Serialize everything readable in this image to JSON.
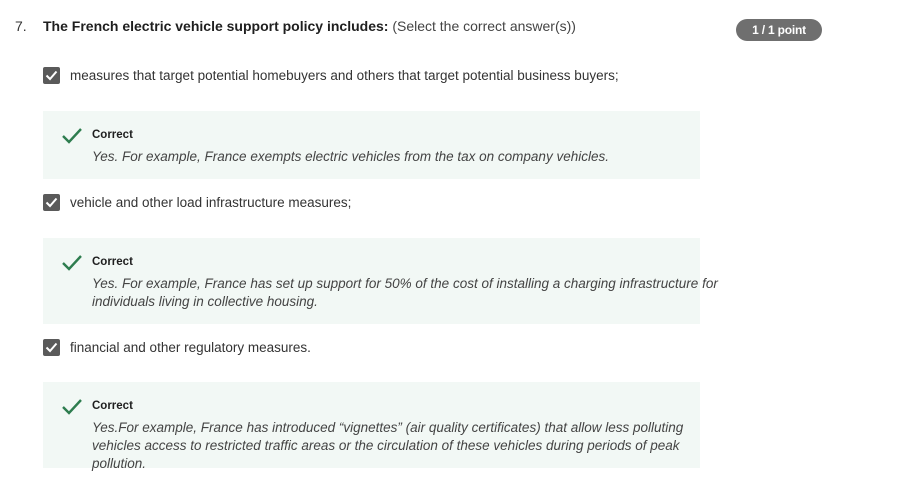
{
  "question": {
    "number": "7.",
    "stem": "The French electric vehicle support policy includes:",
    "instruction": " (Select the correct answer(s))",
    "points_badge": "1 / 1 point"
  },
  "options": [
    {
      "label": "measures that target potential homebuyers and others that target potential business buyers;",
      "checked": true,
      "feedback": {
        "verdict": "Correct",
        "explanation": "Yes. For example, France exempts electric vehicles from the tax on company vehicles."
      }
    },
    {
      "label": "vehicle and other load infrastructure measures;",
      "checked": true,
      "feedback": {
        "verdict": "Correct",
        "explanation": "Yes. For example, France has set up support for 50% of the cost of installing a charging infrastructure for individuals living in collective housing."
      }
    },
    {
      "label": "financial and other regulatory measures.",
      "checked": true,
      "feedback": {
        "verdict": "Correct",
        "explanation": "Yes.For example, France has introduced “vignettes” (air quality certificates) that allow less polluting vehicles access to restricted traffic areas or the circulation of these vehicles during periods of peak pollution."
      }
    }
  ],
  "icons": {
    "checkbox": "checkbox-checked-icon",
    "feedback": "checkmark-icon"
  },
  "colors": {
    "correct_green": "#2e7d4f",
    "feedback_background": "#f2f8f5",
    "badge_background": "#6f6f6f",
    "checkbox_fill": "#5a5a5a"
  }
}
